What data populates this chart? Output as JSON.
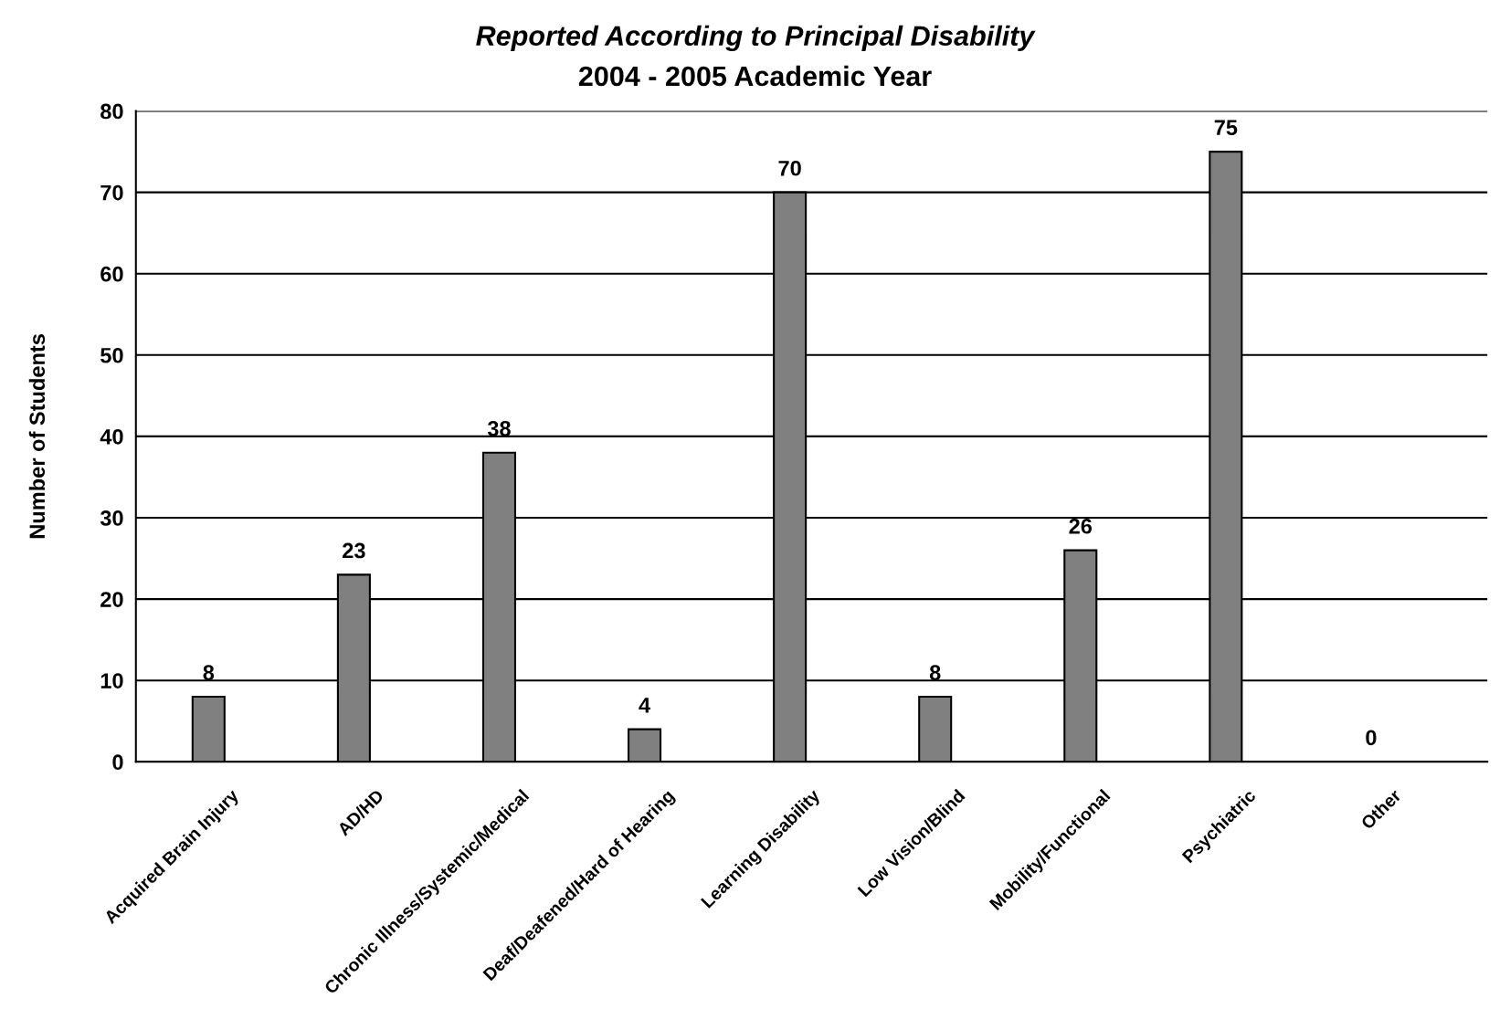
{
  "chart_data": {
    "type": "bar",
    "title": "Reported According to Principal Disability",
    "subtitle": "2004 - 2005 Academic Year",
    "ylabel": "Number of Students",
    "categories": [
      "Acquired Brain Injury",
      "AD/HD",
      "Chronic Illness/Systemic/Medical",
      "Deaf/Deafened/Hard of Hearing",
      "Learning Disability",
      "Low Vision/Blind",
      "Mobility/Functional",
      "Psychiatric",
      "Other"
    ],
    "values": [
      8,
      23,
      38,
      4,
      70,
      8,
      26,
      75,
      0
    ],
    "color": "#808080",
    "ylim": [
      0,
      80
    ],
    "yticks": [
      0,
      10,
      20,
      30,
      40,
      50,
      60,
      70,
      80
    ],
    "grid": "y",
    "data_labels": true
  }
}
